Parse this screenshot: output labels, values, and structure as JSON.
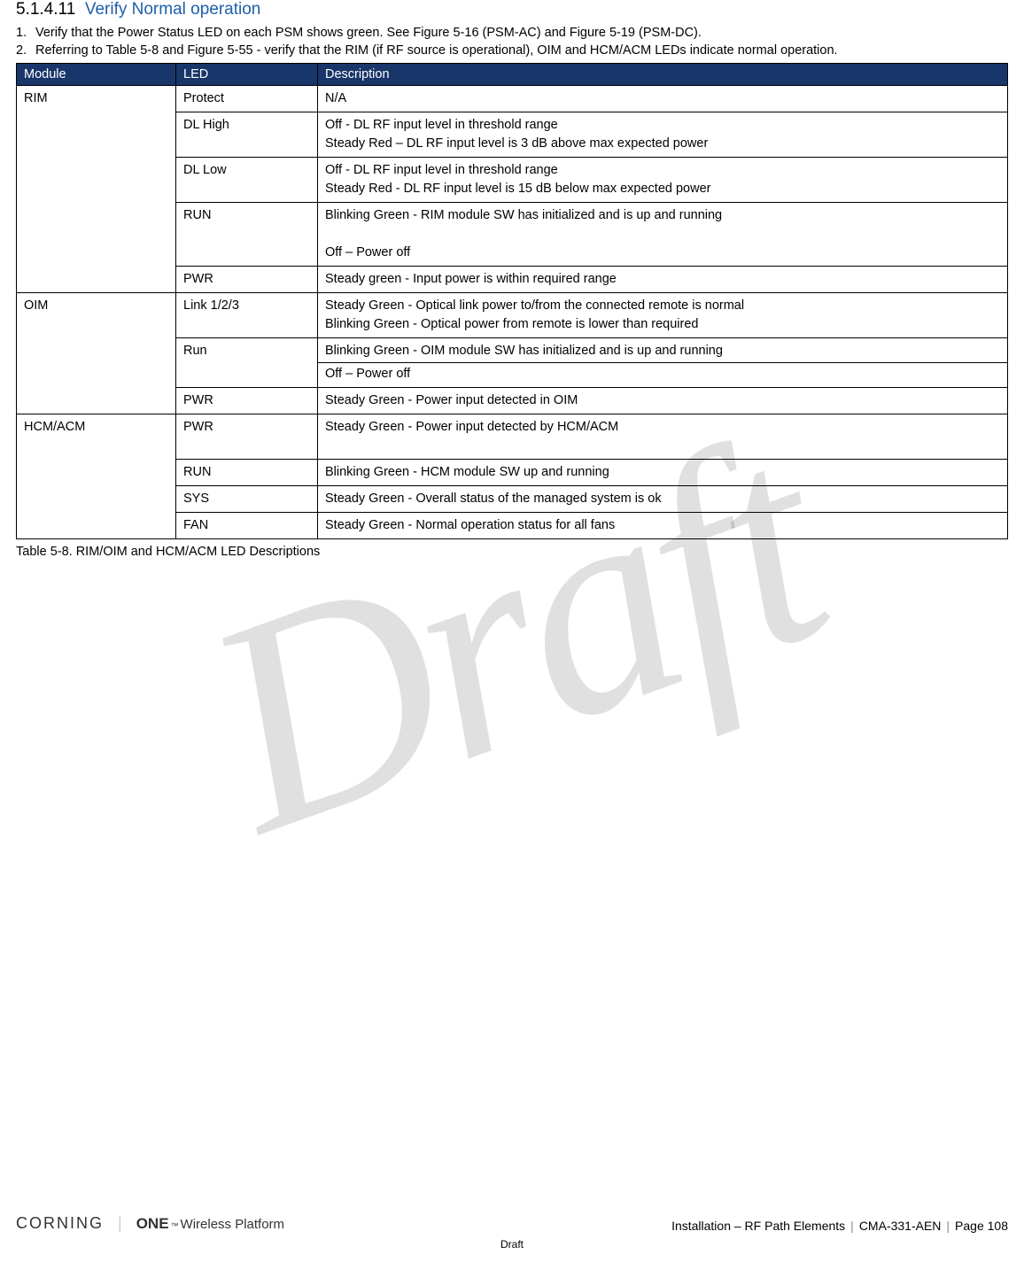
{
  "heading": {
    "number": "5.1.4.11",
    "title": "Verify Normal operation"
  },
  "list": [
    "Verify that the Power Status LED on each PSM shows green. See Figure 5-16 (PSM-AC) and Figure 5-19 (PSM-DC).",
    "Referring to Table 5-8 and Figure 5-55 - verify that the RIM (if RF source is operational), OIM and HCM/ACM LEDs indicate normal operation."
  ],
  "table": {
    "headers": [
      "Module",
      "LED",
      "Description"
    ],
    "caption": "Table 5-8. RIM/OIM and HCM/ACM LED Descriptions",
    "groups": [
      {
        "module": "RIM",
        "rows": [
          {
            "led": "Protect",
            "desc": [
              "N/A"
            ]
          },
          {
            "led": "DL High",
            "desc": [
              "Off   - DL RF input level in threshold range",
              "Steady Red – DL RF input level is 3 dB above max expected power"
            ]
          },
          {
            "led": "DL Low",
            "desc": [
              "Off - DL RF input level in threshold range",
              "Steady Red - DL RF input level is 15 dB below max expected power"
            ]
          },
          {
            "led": "RUN",
            "desc": [
              "Blinking Green - RIM module SW has initialized and is up and running",
              "",
              "Off – Power off"
            ]
          },
          {
            "led": "PWR",
            "desc": [
              "Steady green - Input power is within required range"
            ]
          }
        ]
      },
      {
        "module": "OIM",
        "rows": [
          {
            "led": "Link 1/2/3",
            "desc": [
              "Steady Green - Optical link power to/from the connected remote is normal",
              "Blinking Green - Optical power from remote is lower than required"
            ]
          },
          {
            "led": "Run",
            "desc_split": [
              "Blinking Green - OIM module SW has initialized and is up and running",
              "Off – Power off"
            ]
          },
          {
            "led": "PWR",
            "desc": [
              "Steady Green - Power input detected in OIM"
            ]
          }
        ]
      },
      {
        "module": "HCM/ACM",
        "rows": [
          {
            "led": "PWR",
            "desc": [
              "Steady Green - Power input detected by HCM/ACM",
              ""
            ]
          },
          {
            "led": "RUN",
            "desc": [
              "Blinking Green - HCM module SW up and running"
            ]
          },
          {
            "led": "SYS",
            "desc": [
              "Steady Green - Overall status of the managed system is ok"
            ]
          },
          {
            "led": "FAN",
            "desc": [
              "Steady Green - Normal operation status for all fans"
            ]
          }
        ]
      }
    ]
  },
  "footer": {
    "brand1": "CORNING",
    "brand2_one": "ONE",
    "brand2_tm": "™",
    "brand2_rest": "Wireless Platform",
    "section": "Installation – RF Path Elements",
    "doc": "CMA-331-AEN",
    "page": "Page 108",
    "draft": "Draft"
  },
  "watermark": "Draft",
  "colors": {
    "heading_blue": "#1f5ea8",
    "table_header_bg": "#18366a",
    "table_header_fg": "#ffffff",
    "border": "#000000",
    "text": "#000000"
  }
}
